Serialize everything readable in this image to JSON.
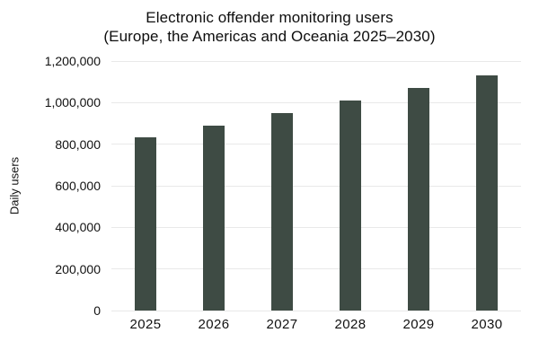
{
  "chart_data": {
    "type": "bar",
    "title": "Electronic offender monitoring users",
    "subtitle": "(Europe, the Americas and Oceania 2025–2030)",
    "categories": [
      "2025",
      "2026",
      "2027",
      "2028",
      "2029",
      "2030"
    ],
    "values": [
      835000,
      890000,
      950000,
      1010000,
      1070000,
      1130000
    ],
    "xlabel": "",
    "ylabel": "Daily users",
    "ylim": [
      0,
      1200000
    ],
    "ytick_step": 200000,
    "ytick_labels": [
      "0",
      "200,000",
      "400,000",
      "600,000",
      "800,000",
      "1,000,000",
      "1,200,000"
    ],
    "grid": true,
    "legend": "none",
    "bar_color": "#3e4b44",
    "grid_color": "#e9e9e9",
    "background_color": "#ffffff",
    "text_color": "#111111"
  }
}
